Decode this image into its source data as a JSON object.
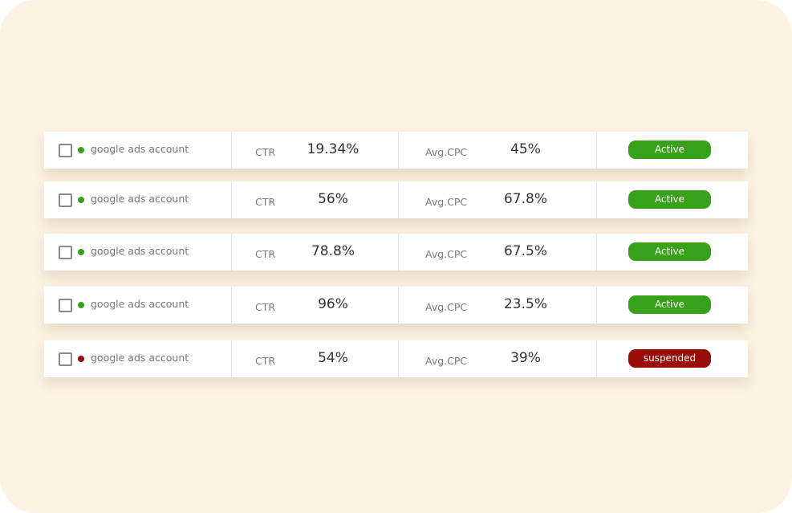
{
  "rows": [
    {
      "account": "google ads account",
      "ctr_label": "CTR",
      "ctr": "19.34%",
      "cpc_label": "Avg.CPC",
      "cpc": "45%",
      "status": "Active",
      "color": "#38a11a"
    },
    {
      "account": "google ads account",
      "ctr_label": "CTR",
      "ctr": "56%",
      "cpc_label": "Avg.CPC",
      "cpc": "67.8%",
      "status": "Active",
      "color": "#38a11a"
    },
    {
      "account": "google ads account",
      "ctr_label": "CTR",
      "ctr": "78.8%",
      "cpc_label": "Avg.CPC",
      "cpc": "67.5%",
      "status": "Active",
      "color": "#38a11a"
    },
    {
      "account": "google ads account",
      "ctr_label": "CTR",
      "ctr": "96%",
      "cpc_label": "Avg.CPC",
      "cpc": "23.5%",
      "status": "Active",
      "color": "#38a11a"
    },
    {
      "account": "google ads account",
      "ctr_label": "CTR",
      "ctr": "54%",
      "cpc_label": "Avg.CPC",
      "cpc": "39%",
      "status": "suspended",
      "color": "#9a0c06"
    }
  ]
}
